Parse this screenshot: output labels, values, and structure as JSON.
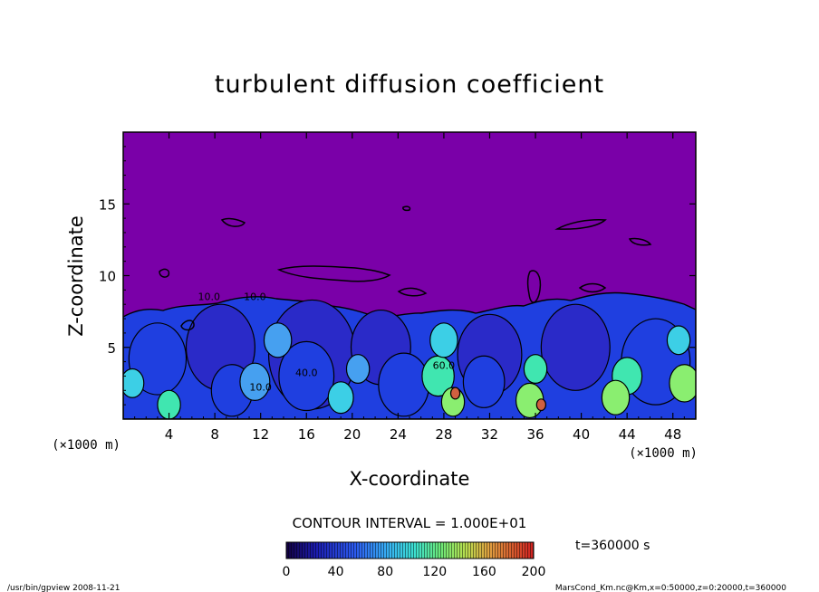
{
  "chart_data": {
    "type": "heatmap",
    "title": "turbulent diffusion coefficient",
    "xlabel": "X-coordinate",
    "ylabel": "Z-coordinate",
    "x_unit_left": "(×1000 m)",
    "x_unit_right": "(×1000 m)",
    "xlim": [
      0,
      50
    ],
    "ylim": [
      0,
      20
    ],
    "x_ticks": [
      4,
      8,
      12,
      16,
      20,
      24,
      28,
      32,
      36,
      40,
      44,
      48
    ],
    "y_ticks": [
      5,
      10,
      15
    ],
    "x_tick_labels": [
      "4",
      "8",
      "12",
      "16",
      "20",
      "24",
      "28",
      "32",
      "36",
      "40",
      "44",
      "48"
    ],
    "y_tick_labels": [
      "5",
      "10",
      "15"
    ],
    "contour_interval": "CONTOUR INTERVAL = 1.000E+01",
    "contour_labels": [
      {
        "text": "10.0",
        "x": 7.5,
        "z": 8.3
      },
      {
        "text": "10.0",
        "x": 11.5,
        "z": 8.3
      },
      {
        "text": "10.0",
        "x": 12.0,
        "z": 2.0
      },
      {
        "text": "40.0",
        "x": 16.0,
        "z": 3.0
      },
      {
        "text": "60.0",
        "x": 28.0,
        "z": 3.5
      }
    ],
    "colorbar": {
      "min": 0,
      "max": 200,
      "ticks": [
        0,
        40,
        80,
        120,
        160,
        200
      ],
      "tick_labels": [
        "0",
        "40",
        "80",
        "120",
        "160",
        "200"
      ]
    },
    "time_label": "t=360000 s",
    "fill_colors": [
      "#7a00a8",
      "#2a2ac8",
      "#1f3fe0",
      "#3a73f0",
      "#46a0f0",
      "#3ccfe6",
      "#40e6b0",
      "#8aee70",
      "#d06040"
    ],
    "regions": [
      {
        "cx": 3.0,
        "cz": 4.2,
        "r": 2.5,
        "k": 2
      },
      {
        "cx": 8.5,
        "cz": 5.0,
        "r": 3.0,
        "k": 1
      },
      {
        "cx": 9.5,
        "cz": 2.0,
        "r": 1.8,
        "k": 2
      },
      {
        "cx": 16.5,
        "cz": 4.5,
        "r": 3.8,
        "k": 1
      },
      {
        "cx": 16.0,
        "cz": 3.0,
        "r": 2.4,
        "k": 2
      },
      {
        "cx": 22.5,
        "cz": 5.0,
        "r": 2.6,
        "k": 1
      },
      {
        "cx": 24.5,
        "cz": 2.4,
        "r": 2.2,
        "k": 2
      },
      {
        "cx": 32.0,
        "cz": 4.5,
        "r": 2.8,
        "k": 1
      },
      {
        "cx": 31.5,
        "cz": 2.6,
        "r": 1.8,
        "k": 2
      },
      {
        "cx": 39.5,
        "cz": 5.0,
        "r": 3.0,
        "k": 1
      },
      {
        "cx": 46.5,
        "cz": 4.0,
        "r": 3.0,
        "k": 2
      },
      {
        "cx": 11.5,
        "cz": 2.6,
        "r": 1.3,
        "k": 4
      },
      {
        "cx": 13.5,
        "cz": 5.5,
        "r": 1.2,
        "k": 4
      },
      {
        "cx": 19.0,
        "cz": 1.5,
        "r": 1.1,
        "k": 5
      },
      {
        "cx": 20.5,
        "cz": 3.5,
        "r": 1.0,
        "k": 4
      },
      {
        "cx": 27.5,
        "cz": 3.0,
        "r": 1.4,
        "k": 6
      },
      {
        "cx": 28.0,
        "cz": 5.5,
        "r": 1.2,
        "k": 5
      },
      {
        "cx": 28.8,
        "cz": 1.2,
        "r": 1.0,
        "k": 7
      },
      {
        "cx": 35.5,
        "cz": 1.3,
        "r": 1.2,
        "k": 7
      },
      {
        "cx": 36.0,
        "cz": 3.5,
        "r": 1.0,
        "k": 6
      },
      {
        "cx": 44.0,
        "cz": 3.0,
        "r": 1.3,
        "k": 6
      },
      {
        "cx": 43.0,
        "cz": 1.5,
        "r": 1.2,
        "k": 7
      },
      {
        "cx": 49.0,
        "cz": 2.5,
        "r": 1.3,
        "k": 7
      },
      {
        "cx": 48.5,
        "cz": 5.5,
        "r": 1.0,
        "k": 5
      },
      {
        "cx": 4.0,
        "cz": 1.0,
        "r": 1.0,
        "k": 6
      },
      {
        "cx": 0.8,
        "cz": 2.5,
        "r": 1.0,
        "k": 5
      },
      {
        "cx": 29.0,
        "cz": 1.8,
        "r": 0.4,
        "k": 8
      },
      {
        "cx": 36.5,
        "cz": 1.0,
        "r": 0.4,
        "k": 8
      }
    ]
  },
  "footer": {
    "left": "/usr/bin/gpview 2008-11-21",
    "right": "MarsCond_Km.nc@Km,x=0:50000,z=0:20000,t=360000"
  }
}
